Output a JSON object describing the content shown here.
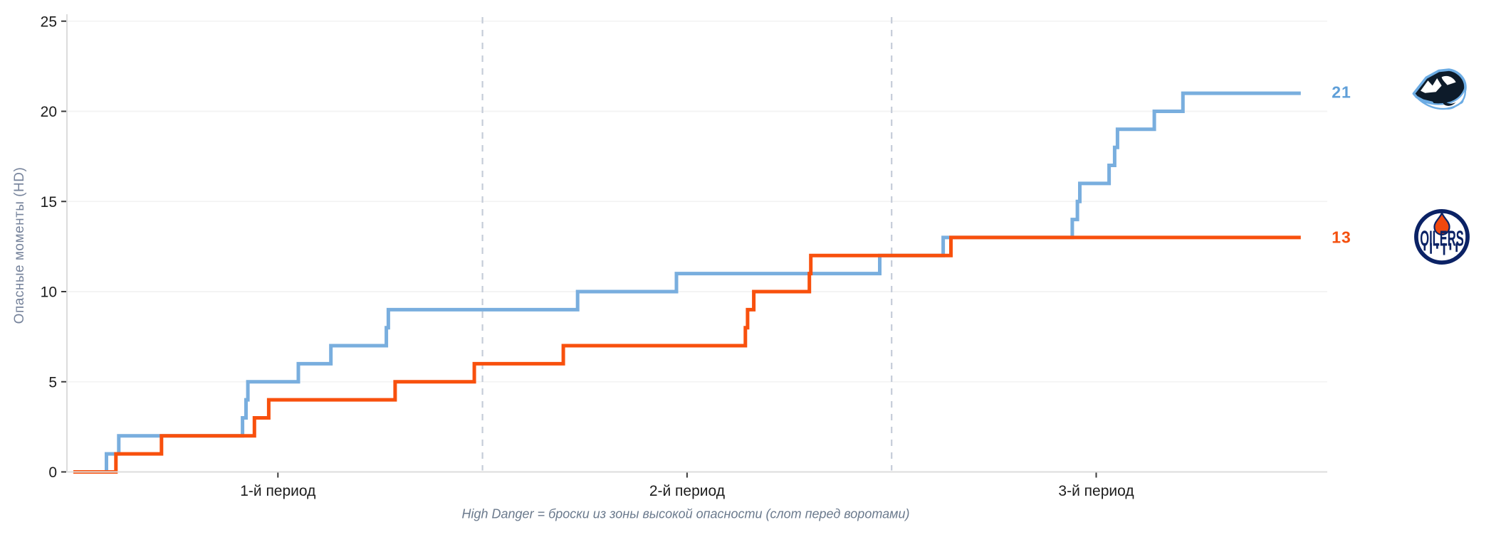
{
  "chart_data": {
    "type": "line",
    "subtype": "step-after-cumulative",
    "title": "",
    "xlabel": "",
    "ylabel": "Опасные моменты (HD)",
    "caption": "High Danger = броски из зоны высокой опасности (слот перед воротами)",
    "xlim": [
      0,
      60
    ],
    "ylim": [
      0,
      25
    ],
    "grid": "horizontal",
    "legend_position": "right-outside",
    "yticks": [
      0,
      5,
      10,
      15,
      20,
      25
    ],
    "xticks": [
      {
        "t": 10,
        "label": "1-й период"
      },
      {
        "t": 30,
        "label": "2-й период"
      },
      {
        "t": 50,
        "label": "3-й период"
      }
    ],
    "period_separators_t": [
      20,
      40
    ],
    "series": [
      {
        "name": "mammoth",
        "color": "#79aede",
        "final_value": 21,
        "event_times_min": [
          1.62,
          2.22,
          8.27,
          8.44,
          8.53,
          11.0,
          12.59,
          15.3,
          15.4,
          24.65,
          29.48,
          39.42,
          42.52,
          48.83,
          49.08,
          49.2,
          50.63,
          50.9,
          51.04,
          52.84,
          54.24
        ]
      },
      {
        "name": "oilers",
        "color": "#f8500d",
        "final_value": 13,
        "event_times_min": [
          2.08,
          4.31,
          8.85,
          9.55,
          15.73,
          19.6,
          23.95,
          32.85,
          32.96,
          33.26,
          35.98,
          36.05,
          42.9
        ]
      }
    ]
  },
  "right_panel": {
    "team1": {
      "value": "21",
      "logo": "utah-mammoth-logo"
    },
    "team2": {
      "value": "13",
      "logo": "edmonton-oilers-logo",
      "logo_text": "OILERS"
    }
  },
  "colors": {
    "line_blue": "#79aede",
    "line_orange": "#f8500d",
    "value_blue": "#5f9fd8",
    "value_orange": "#f4500e",
    "grid": "#f3f3f3",
    "spine": "#dcdcdc",
    "tick_mark": "#3a3a3a",
    "tick_label": "#1c1c1c",
    "separator": "#c5ccd8",
    "ylabel_color": "#76839b",
    "caption_color": "#6b7a8d",
    "mammoth_dark": "#0d1b2a",
    "mammoth_accent": "#6cace4",
    "oilers_navy": "#0b2265",
    "oilers_orange": "#f1480e"
  }
}
